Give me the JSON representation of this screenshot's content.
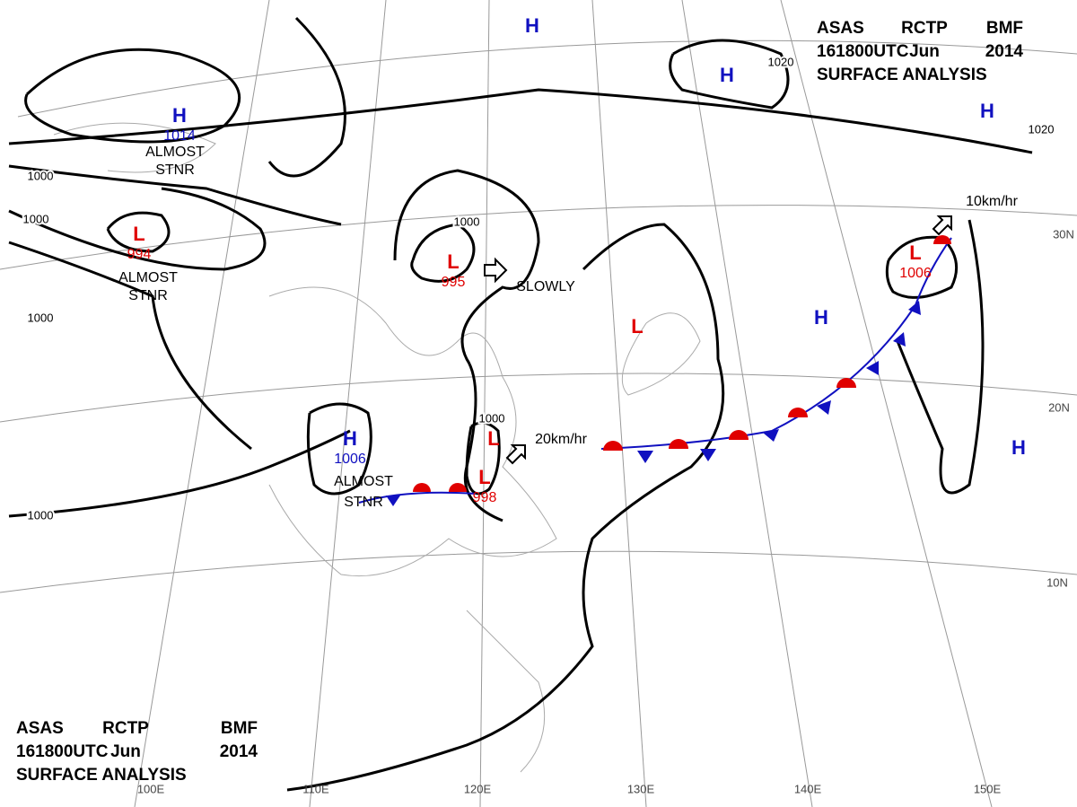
{
  "header_top": {
    "line1": [
      "ASAS",
      "RCTP",
      "BMF"
    ],
    "line2": [
      "161800UTC",
      "Jun",
      "2014"
    ],
    "line3": "SURFACE ANALYSIS"
  },
  "header_bottom": {
    "line1": [
      "ASAS",
      "RCTP",
      "BMF"
    ],
    "line2": [
      "161800UTC",
      "Jun",
      "2014"
    ],
    "line3": "SURFACE ANALYSIS"
  },
  "centers": [
    {
      "symbol": "H",
      "pressure": "1014"
    },
    {
      "symbol": "L",
      "pressure": "994"
    },
    {
      "symbol": "L",
      "pressure": "995"
    },
    {
      "symbol": "H",
      "pressure": "1006"
    },
    {
      "symbol": "L"
    },
    {
      "symbol": "L",
      "pressure": "998"
    },
    {
      "symbol": "L",
      "pressure": "1006"
    },
    {
      "symbol": "L"
    },
    {
      "symbol": "H"
    },
    {
      "symbol": "H"
    },
    {
      "symbol": "H"
    },
    {
      "symbol": "H"
    },
    {
      "symbol": "H"
    }
  ],
  "isobar_labels": [
    "1000",
    "1000",
    "1000",
    "1000",
    "1000",
    "1000",
    "1020",
    "1020"
  ],
  "annotations": [
    "ALMOST",
    "STNR",
    "ALMOST",
    "STNR",
    "ALMOST",
    "STNR",
    "SLOWLY",
    "20km/hr",
    "10km/hr"
  ],
  "latitude_labels": [
    "30N",
    "20N",
    "10N"
  ],
  "longitude_labels": [
    "100E",
    "110E",
    "120E",
    "130E",
    "140E",
    "150E"
  ]
}
